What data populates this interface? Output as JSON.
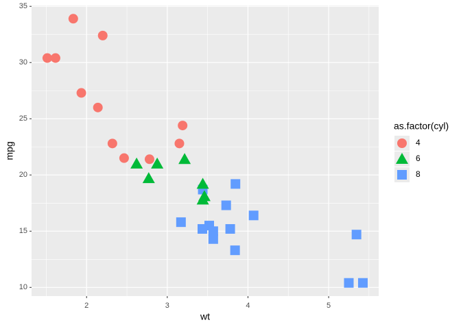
{
  "chart_data": {
    "type": "scatter",
    "x_label": "wt",
    "y_label": "mpg",
    "xlim": [
      1.318,
      5.62
    ],
    "ylim": [
      9.225,
      35.075
    ],
    "xticks": [
      2,
      3,
      4,
      5
    ],
    "yticks": [
      10,
      15,
      20,
      25,
      30,
      35
    ],
    "grid": true,
    "legend_title": "as.factor(cyl)",
    "legend_position": "right",
    "series": [
      {
        "name": "4",
        "color": "#F8766D",
        "shape": "circle",
        "x": [
          2.32,
          3.19,
          3.15,
          2.2,
          1.615,
          1.835,
          2.465,
          1.935,
          2.14,
          1.513,
          2.78
        ],
        "values": [
          22.8,
          24.4,
          22.8,
          32.4,
          30.4,
          33.9,
          21.5,
          27.3,
          26.0,
          30.4,
          21.4
        ]
      },
      {
        "name": "6",
        "color": "#00BA38",
        "shape": "triangle",
        "x": [
          2.62,
          2.875,
          3.215,
          3.46,
          3.44,
          3.44,
          2.77
        ],
        "values": [
          21.0,
          21.0,
          21.4,
          18.1,
          19.2,
          17.8,
          19.7
        ]
      },
      {
        "name": "8",
        "color": "#619CFF",
        "shape": "square",
        "x": [
          3.44,
          3.57,
          4.07,
          3.73,
          3.78,
          5.25,
          5.424,
          5.345,
          3.52,
          3.435,
          3.84,
          3.845,
          3.17,
          3.57
        ],
        "values": [
          18.7,
          14.3,
          16.4,
          17.3,
          15.2,
          10.4,
          10.4,
          14.7,
          15.5,
          15.2,
          13.3,
          19.2,
          15.8,
          15.0
        ]
      }
    ]
  }
}
